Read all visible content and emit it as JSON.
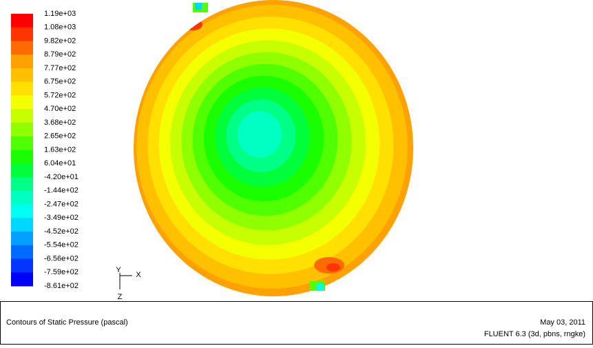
{
  "colorbar": {
    "labels": [
      "1.19e+03",
      "1.08e+03",
      "9.82e+02",
      "8.79e+02",
      "7.77e+02",
      "6.75e+02",
      "5.72e+02",
      "4.70e+02",
      "3.68e+02",
      "2.65e+02",
      "1.63e+02",
      "6.04e+01",
      "-4.20e+01",
      "-1.44e+02",
      "-2.47e+02",
      "-3.49e+02",
      "-4.52e+02",
      "-5.54e+02",
      "-6.56e+02",
      "-7.59e+02",
      "-8.61e+02"
    ],
    "colors": [
      "#ff0000",
      "#ff3500",
      "#ff6b00",
      "#ffa100",
      "#ffc000",
      "#ffe000",
      "#f4ff00",
      "#c8ff00",
      "#90ff00",
      "#50ff00",
      "#1aff00",
      "#00ff3a",
      "#00ff85",
      "#00ffc0",
      "#00fff1",
      "#00d7ff",
      "#00a1ff",
      "#006bff",
      "#0035ff",
      "#0000ff"
    ]
  },
  "axes": {
    "y": "Y",
    "x": "X",
    "z": "Z"
  },
  "footer": {
    "title": "Contours of Static Pressure (pascal)",
    "date": "May 03, 2011",
    "version": "FLUENT 6.3 (3d, pbns, rngke)"
  }
}
